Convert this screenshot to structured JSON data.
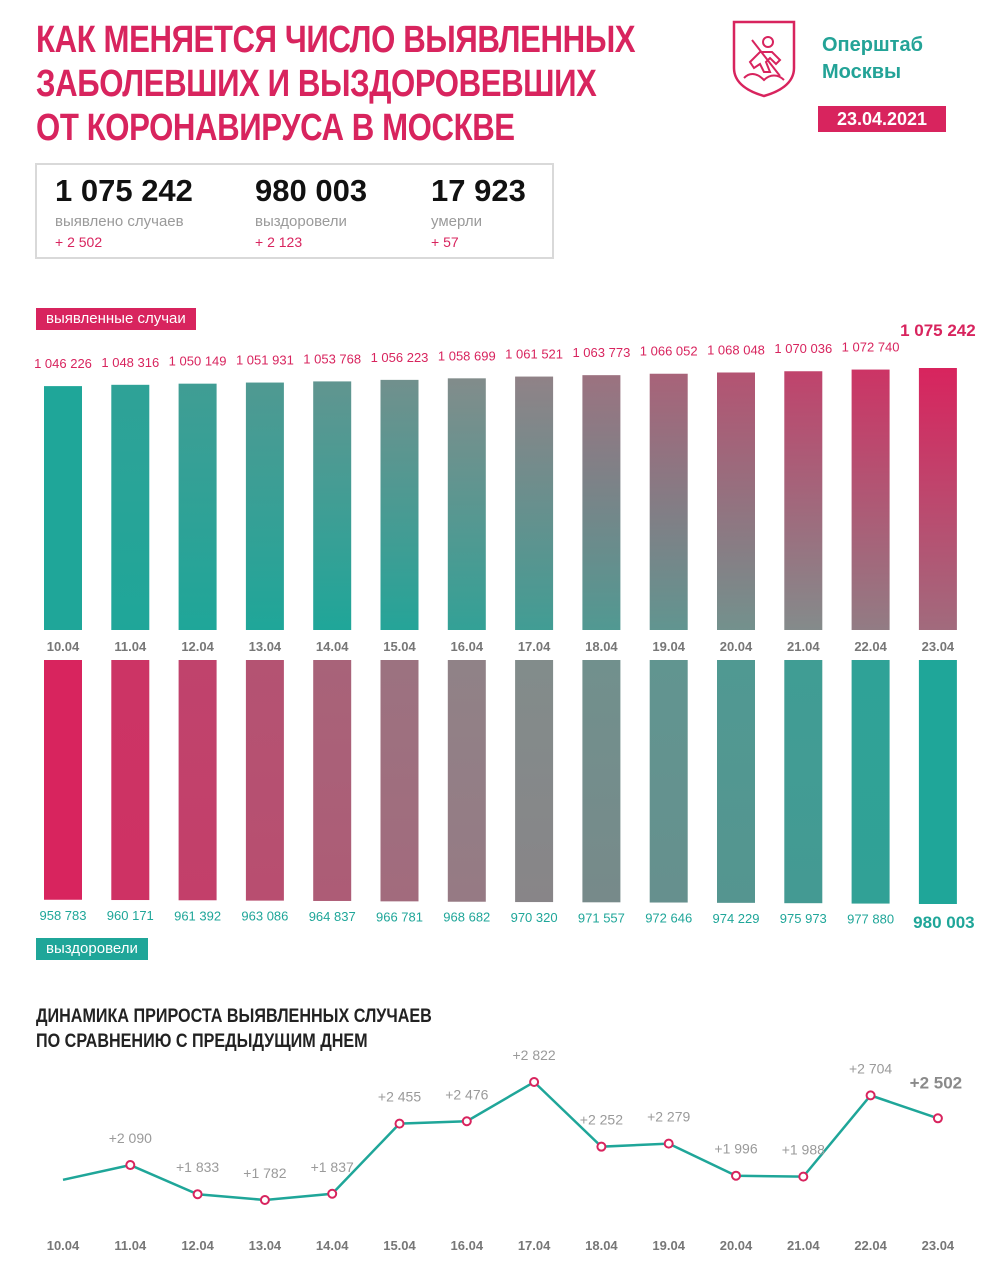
{
  "header": {
    "title_lines": [
      "Как меняется число выявленных",
      "заболевших и выздоровевших",
      "от коронавируса в Москве"
    ],
    "org_lines": [
      "Оперштаб",
      "Москвы"
    ],
    "date": "23.04.2021"
  },
  "stats": [
    {
      "value": "1 075 242",
      "label": "выявлено случаев",
      "delta": "+ 2 502"
    },
    {
      "value": "980 003",
      "label": "выздоровели",
      "delta": "+ 2 123"
    },
    {
      "value": "17 923",
      "label": "умерли",
      "delta": "+ 57"
    }
  ],
  "colors": {
    "accent": "#d8245e",
    "teal": "#1fa699",
    "grey": "#8a8a8a"
  },
  "chart_data": [
    {
      "type": "bar",
      "legend_label": "выявленные случаи",
      "categories": [
        "10.04",
        "11.04",
        "12.04",
        "13.04",
        "14.04",
        "15.04",
        "16.04",
        "17.04",
        "18.04",
        "19.04",
        "20.04",
        "21.04",
        "22.04",
        "23.04"
      ],
      "values": [
        1046226,
        1048316,
        1050149,
        1051931,
        1053768,
        1056223,
        1058699,
        1061521,
        1063773,
        1066052,
        1068048,
        1070036,
        1072740,
        1075242
      ],
      "value_labels": [
        "1 046 226",
        "1 048 316",
        "1 050 149",
        "1 051 931",
        "1 053 768",
        "1 056 223",
        "1 058 699",
        "1 061 521",
        "1 063 773",
        "1 066 052",
        "1 068 048",
        "1 070 036",
        "1 072 740",
        "1 075 242"
      ]
    },
    {
      "type": "bar",
      "legend_label": "выздоровели",
      "categories": [
        "10.04",
        "11.04",
        "12.04",
        "13.04",
        "14.04",
        "15.04",
        "16.04",
        "17.04",
        "18.04",
        "19.04",
        "20.04",
        "21.04",
        "22.04",
        "23.04"
      ],
      "values": [
        958783,
        960171,
        961392,
        963086,
        964837,
        966781,
        968682,
        970320,
        971557,
        972646,
        974229,
        975973,
        977880,
        980003
      ],
      "value_labels": [
        "958 783",
        "960 171",
        "961 392",
        "963 086",
        "964 837",
        "966 781",
        "968 682",
        "970 320",
        "971 557",
        "972 646",
        "974 229",
        "975 973",
        "977 880",
        "980 003"
      ]
    },
    {
      "type": "line",
      "title_lines": [
        "Динамика прироста выявленных случаев",
        "по сравнению с предыдущим днем"
      ],
      "x": [
        "10.04",
        "11.04",
        "12.04",
        "13.04",
        "14.04",
        "15.04",
        "16.04",
        "17.04",
        "18.04",
        "19.04",
        "20.04",
        "21.04",
        "22.04",
        "23.04"
      ],
      "y": [
        null,
        2090,
        1833,
        1782,
        1837,
        2455,
        2476,
        2822,
        2252,
        2279,
        1996,
        1988,
        2704,
        2502
      ],
      "point_labels": [
        "",
        "+2 090",
        "+1 833",
        "+1 782",
        "+1 837",
        "+2 455",
        "+2 476",
        "+2 822",
        "+2 252",
        "+2 279",
        "+1 996",
        "+1 988",
        "+2 704",
        "+2 502"
      ]
    }
  ]
}
